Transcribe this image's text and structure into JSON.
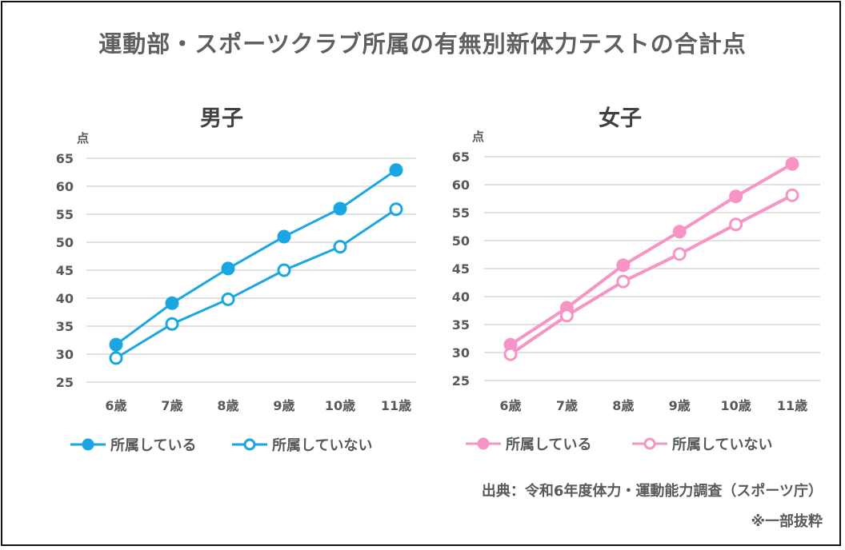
{
  "title": "運動部・スポーツクラブ所属の有無別新体力テストの合計点",
  "source": "出典：令和6年度体力・運動能力調査（スポーツ庁）",
  "note": "※一部抜粋",
  "chart_data": [
    {
      "type": "line",
      "title": "男子",
      "ylabel": "点",
      "ylim": [
        25,
        65
      ],
      "yticks": [
        25,
        30,
        35,
        40,
        45,
        50,
        55,
        60,
        65
      ],
      "grid": true,
      "legend": "bottom",
      "color": "#1aa6e2",
      "categories": [
        "6歳",
        "7歳",
        "8歳",
        "9歳",
        "10歳",
        "11歳"
      ],
      "series": [
        {
          "name": "所属している",
          "marker": "filled",
          "values": [
            31.7,
            39.1,
            45.3,
            51.0,
            56.0,
            62.9
          ]
        },
        {
          "name": "所属していない",
          "marker": "open",
          "values": [
            29.3,
            35.4,
            39.8,
            45.0,
            49.2,
            55.9
          ]
        }
      ]
    },
    {
      "type": "line",
      "title": "女子",
      "ylabel": "点",
      "ylim": [
        25,
        65
      ],
      "yticks": [
        25,
        30,
        35,
        40,
        45,
        50,
        55,
        60,
        65
      ],
      "grid": true,
      "legend": "bottom",
      "color": "#f794c6",
      "categories": [
        "6歳",
        "7歳",
        "8歳",
        "9歳",
        "10歳",
        "11歳"
      ],
      "series": [
        {
          "name": "所属している",
          "marker": "filled",
          "values": [
            31.4,
            38.0,
            45.6,
            51.6,
            57.9,
            63.7
          ]
        },
        {
          "name": "所属していない",
          "marker": "open",
          "values": [
            29.7,
            36.6,
            42.7,
            47.6,
            52.9,
            58.1
          ]
        }
      ]
    }
  ]
}
